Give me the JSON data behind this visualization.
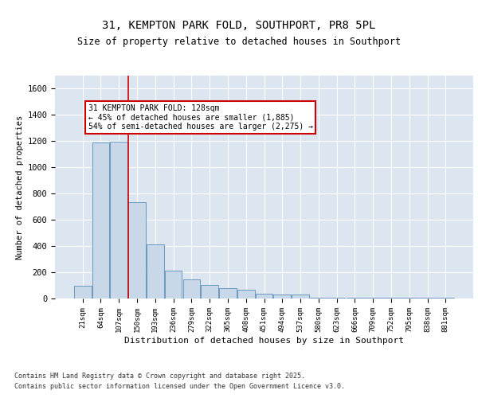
{
  "title_line1": "31, KEMPTON PARK FOLD, SOUTHPORT, PR8 5PL",
  "title_line2": "Size of property relative to detached houses in Southport",
  "xlabel": "Distribution of detached houses by size in Southport",
  "ylabel": "Number of detached properties",
  "categories": [
    "21sqm",
    "64sqm",
    "107sqm",
    "150sqm",
    "193sqm",
    "236sqm",
    "279sqm",
    "322sqm",
    "365sqm",
    "408sqm",
    "451sqm",
    "494sqm",
    "537sqm",
    "580sqm",
    "623sqm",
    "666sqm",
    "709sqm",
    "752sqm",
    "795sqm",
    "838sqm",
    "881sqm"
  ],
  "values": [
    95,
    1190,
    1195,
    735,
    415,
    215,
    145,
    105,
    80,
    65,
    35,
    30,
    30,
    5,
    5,
    5,
    5,
    5,
    5,
    5,
    5
  ],
  "bar_color": "#c8d8e8",
  "bar_edge_color": "#5b8db8",
  "background_color": "#dce6f0",
  "grid_color": "#ffffff",
  "annotation_text": "31 KEMPTON PARK FOLD: 128sqm\n← 45% of detached houses are smaller (1,885)\n54% of semi-detached houses are larger (2,275) →",
  "annotation_box_color": "#ffffff",
  "annotation_box_edge": "#cc0000",
  "vline_color": "#cc0000",
  "vline_pos": 2.5,
  "ylim": [
    0,
    1700
  ],
  "yticks": [
    0,
    200,
    400,
    600,
    800,
    1000,
    1200,
    1400,
    1600
  ],
  "footnote_line1": "Contains HM Land Registry data © Crown copyright and database right 2025.",
  "footnote_line2": "Contains public sector information licensed under the Open Government Licence v3.0."
}
